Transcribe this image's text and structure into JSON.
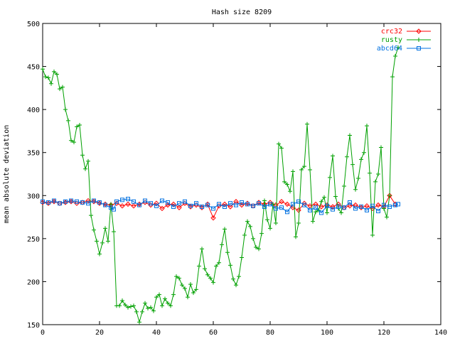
{
  "chart_data": {
    "type": "line",
    "title": "Hash size 8209",
    "xlabel": "",
    "ylabel": "mean absolute deviation",
    "xlim": [
      0,
      140
    ],
    "ylim": [
      150,
      500
    ],
    "xticks": [
      0,
      20,
      40,
      60,
      80,
      100,
      120,
      140
    ],
    "yticks": [
      150,
      200,
      250,
      300,
      350,
      400,
      450,
      500
    ],
    "grid": false,
    "legend_position": "top-right",
    "series": [
      {
        "name": "crc32",
        "color": "#ff0000",
        "marker": "diamond",
        "points": [
          [
            0,
            292
          ],
          [
            2,
            291
          ],
          [
            4,
            293
          ],
          [
            6,
            291
          ],
          [
            8,
            292
          ],
          [
            10,
            293
          ],
          [
            12,
            291
          ],
          [
            14,
            292
          ],
          [
            16,
            294
          ],
          [
            18,
            293
          ],
          [
            20,
            291
          ],
          [
            22,
            290
          ],
          [
            24,
            289
          ],
          [
            26,
            291
          ],
          [
            28,
            288
          ],
          [
            30,
            290
          ],
          [
            32,
            288
          ],
          [
            34,
            290
          ],
          [
            36,
            292
          ],
          [
            38,
            289
          ],
          [
            40,
            291
          ],
          [
            42,
            285
          ],
          [
            44,
            289
          ],
          [
            46,
            290
          ],
          [
            48,
            286
          ],
          [
            50,
            291
          ],
          [
            52,
            287
          ],
          [
            54,
            289
          ],
          [
            56,
            286
          ],
          [
            58,
            290
          ],
          [
            60,
            274
          ],
          [
            62,
            288
          ],
          [
            64,
            290
          ],
          [
            66,
            287
          ],
          [
            68,
            293
          ],
          [
            70,
            289
          ],
          [
            72,
            291
          ],
          [
            74,
            288
          ],
          [
            76,
            292
          ],
          [
            78,
            290
          ],
          [
            80,
            292
          ],
          [
            82,
            289
          ],
          [
            84,
            293
          ],
          [
            86,
            290
          ],
          [
            88,
            286
          ],
          [
            90,
            283
          ],
          [
            92,
            291
          ],
          [
            94,
            288
          ],
          [
            96,
            290
          ],
          [
            98,
            287
          ],
          [
            100,
            289
          ],
          [
            102,
            287
          ],
          [
            104,
            290
          ],
          [
            106,
            286
          ],
          [
            108,
            288
          ],
          [
            110,
            289
          ],
          [
            112,
            286
          ],
          [
            114,
            288
          ],
          [
            116,
            285
          ],
          [
            118,
            289
          ],
          [
            120,
            287
          ],
          [
            122,
            300
          ],
          [
            124,
            290
          ]
        ]
      },
      {
        "name": "rusty",
        "color": "#00a000",
        "marker": "plus",
        "points": [
          [
            0,
            447
          ],
          [
            1,
            438
          ],
          [
            2,
            437
          ],
          [
            3,
            430
          ],
          [
            4,
            444
          ],
          [
            5,
            441
          ],
          [
            6,
            424
          ],
          [
            7,
            426
          ],
          [
            8,
            400
          ],
          [
            9,
            387
          ],
          [
            10,
            364
          ],
          [
            11,
            362
          ],
          [
            12,
            380
          ],
          [
            13,
            382
          ],
          [
            14,
            347
          ],
          [
            15,
            331
          ],
          [
            16,
            340
          ],
          [
            17,
            277
          ],
          [
            18,
            260
          ],
          [
            19,
            247
          ],
          [
            20,
            232
          ],
          [
            21,
            245
          ],
          [
            22,
            262
          ],
          [
            23,
            247
          ],
          [
            24,
            290
          ],
          [
            25,
            258
          ],
          [
            26,
            172
          ],
          [
            27,
            172
          ],
          [
            28,
            178
          ],
          [
            29,
            173
          ],
          [
            30,
            170
          ],
          [
            31,
            171
          ],
          [
            32,
            172
          ],
          [
            33,
            165
          ],
          [
            34,
            153
          ],
          [
            35,
            165
          ],
          [
            36,
            175
          ],
          [
            37,
            169
          ],
          [
            38,
            170
          ],
          [
            39,
            166
          ],
          [
            40,
            182
          ],
          [
            41,
            185
          ],
          [
            42,
            172
          ],
          [
            43,
            180
          ],
          [
            44,
            175
          ],
          [
            45,
            172
          ],
          [
            46,
            185
          ],
          [
            47,
            206
          ],
          [
            48,
            204
          ],
          [
            49,
            196
          ],
          [
            50,
            192
          ],
          [
            51,
            182
          ],
          [
            52,
            197
          ],
          [
            53,
            187
          ],
          [
            54,
            191
          ],
          [
            55,
            218
          ],
          [
            56,
            238
          ],
          [
            57,
            215
          ],
          [
            58,
            208
          ],
          [
            59,
            204
          ],
          [
            60,
            199
          ],
          [
            61,
            218
          ],
          [
            62,
            222
          ],
          [
            63,
            243
          ],
          [
            64,
            261
          ],
          [
            65,
            234
          ],
          [
            66,
            219
          ],
          [
            67,
            203
          ],
          [
            68,
            196
          ],
          [
            69,
            206
          ],
          [
            70,
            228
          ],
          [
            71,
            254
          ],
          [
            72,
            270
          ],
          [
            73,
            264
          ],
          [
            74,
            250
          ],
          [
            75,
            240
          ],
          [
            76,
            238
          ],
          [
            77,
            256
          ],
          [
            78,
            294
          ],
          [
            79,
            272
          ],
          [
            80,
            262
          ],
          [
            81,
            290
          ],
          [
            82,
            268
          ],
          [
            83,
            360
          ],
          [
            84,
            355
          ],
          [
            85,
            316
          ],
          [
            86,
            313
          ],
          [
            87,
            305
          ],
          [
            88,
            328
          ],
          [
            89,
            252
          ],
          [
            90,
            268
          ],
          [
            91,
            330
          ],
          [
            92,
            334
          ],
          [
            93,
            383
          ],
          [
            94,
            330
          ],
          [
            95,
            270
          ],
          [
            96,
            281
          ],
          [
            97,
            283
          ],
          [
            98,
            293
          ],
          [
            99,
            298
          ],
          [
            100,
            280
          ],
          [
            101,
            321
          ],
          [
            102,
            346
          ],
          [
            103,
            299
          ],
          [
            104,
            285
          ],
          [
            105,
            280
          ],
          [
            106,
            311
          ],
          [
            107,
            345
          ],
          [
            108,
            370
          ],
          [
            109,
            336
          ],
          [
            110,
            307
          ],
          [
            111,
            320
          ],
          [
            112,
            342
          ],
          [
            113,
            350
          ],
          [
            114,
            381
          ],
          [
            115,
            326
          ],
          [
            116,
            254
          ],
          [
            117,
            316
          ],
          [
            118,
            325
          ],
          [
            119,
            356
          ],
          [
            120,
            285
          ],
          [
            121,
            275
          ],
          [
            122,
            300
          ],
          [
            123,
            438
          ],
          [
            124,
            462
          ],
          [
            125,
            472
          ]
        ]
      },
      {
        "name": "abcd64",
        "color": "#0070e0",
        "marker": "square",
        "points": [
          [
            0,
            293
          ],
          [
            2,
            292
          ],
          [
            4,
            294
          ],
          [
            6,
            291
          ],
          [
            8,
            293
          ],
          [
            10,
            294
          ],
          [
            12,
            293
          ],
          [
            14,
            292
          ],
          [
            16,
            291
          ],
          [
            18,
            294
          ],
          [
            20,
            292
          ],
          [
            22,
            289
          ],
          [
            24,
            286
          ],
          [
            25,
            284
          ],
          [
            26,
            293
          ],
          [
            28,
            295
          ],
          [
            30,
            296
          ],
          [
            32,
            293
          ],
          [
            34,
            289
          ],
          [
            36,
            294
          ],
          [
            38,
            291
          ],
          [
            40,
            288
          ],
          [
            42,
            294
          ],
          [
            44,
            292
          ],
          [
            46,
            287
          ],
          [
            48,
            291
          ],
          [
            50,
            293
          ],
          [
            52,
            288
          ],
          [
            54,
            291
          ],
          [
            56,
            287
          ],
          [
            58,
            289
          ],
          [
            60,
            285
          ],
          [
            62,
            290
          ],
          [
            64,
            287
          ],
          [
            66,
            291
          ],
          [
            68,
            289
          ],
          [
            70,
            292
          ],
          [
            72,
            290
          ],
          [
            74,
            288
          ],
          [
            76,
            291
          ],
          [
            78,
            287
          ],
          [
            80,
            290
          ],
          [
            82,
            285
          ],
          [
            84,
            286
          ],
          [
            86,
            281
          ],
          [
            88,
            290
          ],
          [
            90,
            293
          ],
          [
            92,
            289
          ],
          [
            94,
            283
          ],
          [
            96,
            286
          ],
          [
            98,
            280
          ],
          [
            100,
            288
          ],
          [
            102,
            284
          ],
          [
            104,
            287
          ],
          [
            106,
            286
          ],
          [
            108,
            292
          ],
          [
            110,
            285
          ],
          [
            112,
            287
          ],
          [
            114,
            283
          ],
          [
            116,
            288
          ],
          [
            118,
            282
          ],
          [
            120,
            289
          ],
          [
            122,
            287
          ],
          [
            124,
            289
          ],
          [
            125,
            290
          ]
        ]
      }
    ]
  }
}
